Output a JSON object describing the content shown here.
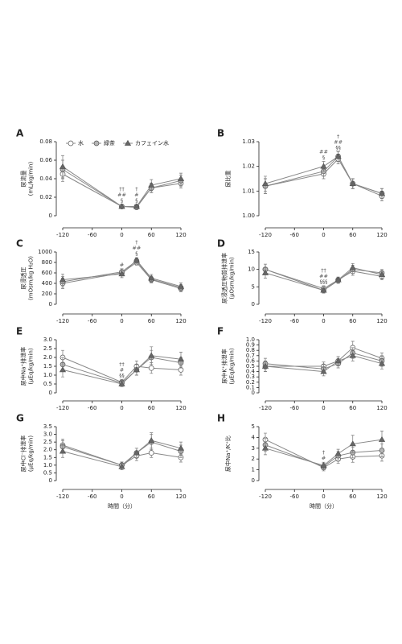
{
  "chart_data": [
    {
      "type": "line",
      "label": "A",
      "ylabel": [
        "尿流量",
        "(mL/kg/min)"
      ],
      "legend": true,
      "x": [
        -120,
        0,
        30,
        60,
        120
      ],
      "xlim": [
        -120,
        120
      ],
      "xticks": [
        -120,
        -60,
        0,
        60,
        120
      ],
      "ylim": [
        0,
        0.08
      ],
      "yticks": [
        0,
        0.02,
        0.04,
        0.06,
        0.08
      ],
      "series": [
        {
          "name": "水",
          "color": "#ffffff",
          "marker": "circle",
          "values": [
            0.045,
            0.01,
            0.01,
            0.03,
            0.035
          ],
          "errors": [
            0.008,
            0.002,
            0.002,
            0.005,
            0.005
          ]
        },
        {
          "name": "緑茶",
          "color": "#b5b5b5",
          "marker": "circle",
          "values": [
            0.05,
            0.01,
            0.009,
            0.03,
            0.038
          ],
          "errors": [
            0.01,
            0.002,
            0.002,
            0.005,
            0.006
          ]
        },
        {
          "name": "カフェイン水",
          "color": "#666666",
          "marker": "triangle",
          "values": [
            0.053,
            0.01,
            0.01,
            0.033,
            0.04
          ],
          "errors": [
            0.012,
            0.002,
            0.002,
            0.006,
            0.006
          ]
        }
      ],
      "annotations": [
        {
          "x": 0,
          "text": [
            "††",
            "##",
            "§"
          ]
        },
        {
          "x": 30,
          "text": [
            "†",
            "#",
            "§"
          ]
        }
      ]
    },
    {
      "type": "line",
      "label": "B",
      "ylabel": [
        "尿比重"
      ],
      "x": [
        -120,
        0,
        30,
        60,
        120
      ],
      "xlim": [
        -120,
        120
      ],
      "xticks": [
        -120,
        -60,
        0,
        60,
        120
      ],
      "ylim": [
        1.0,
        1.03
      ],
      "yticks": [
        {
          "value": 1.0,
          "label": "1.00"
        },
        {
          "value": 1.01,
          "label": "1.01"
        },
        {
          "value": 1.02,
          "label": "1.02"
        },
        {
          "value": 1.03,
          "label": "1.03"
        }
      ],
      "series": [
        {
          "name": "水",
          "color": "#ffffff",
          "marker": "circle",
          "values": [
            1.012,
            1.017,
            1.023,
            1.013,
            1.008
          ],
          "errors": [
            0.003,
            0.002,
            0.002,
            0.002,
            0.002
          ]
        },
        {
          "name": "緑茶",
          "color": "#b5b5b5",
          "marker": "circle",
          "values": [
            1.012,
            1.018,
            1.024,
            1.013,
            1.009
          ],
          "errors": [
            0.003,
            0.002,
            0.002,
            0.002,
            0.002
          ]
        },
        {
          "name": "カフェイン水",
          "color": "#666666",
          "marker": "triangle",
          "values": [
            1.013,
            1.02,
            1.024,
            1.013,
            1.009
          ],
          "errors": [
            0.003,
            0.002,
            0.002,
            0.002,
            0.002
          ]
        }
      ],
      "annotations": [
        {
          "x": 0,
          "text": [
            "##",
            "§"
          ]
        },
        {
          "x": 30,
          "text": [
            "†",
            "##",
            "§§"
          ]
        }
      ]
    },
    {
      "type": "line",
      "label": "C",
      "ylabel": [
        "尿浸透圧",
        "(mOsm/kg H₂O)"
      ],
      "x": [
        -120,
        0,
        30,
        60,
        120
      ],
      "xlim": [
        -120,
        120
      ],
      "xticks": [
        -120,
        -60,
        0,
        60,
        120
      ],
      "ylim": [
        0,
        1000
      ],
      "yticks": [
        0,
        200,
        400,
        600,
        800,
        1000
      ],
      "series": [
        {
          "name": "水",
          "color": "#ffffff",
          "marker": "circle",
          "values": [
            400,
            600,
            800,
            470,
            300
          ],
          "errors": [
            100,
            60,
            50,
            60,
            60
          ]
        },
        {
          "name": "緑茶",
          "color": "#b5b5b5",
          "marker": "circle",
          "values": [
            430,
            620,
            830,
            480,
            320
          ],
          "errors": [
            100,
            60,
            50,
            60,
            60
          ]
        },
        {
          "name": "カフェイン水",
          "color": "#666666",
          "marker": "triangle",
          "values": [
            470,
            580,
            840,
            500,
            340
          ],
          "errors": [
            110,
            70,
            50,
            70,
            70
          ]
        }
      ],
      "annotations": [
        {
          "x": 0,
          "text": [
            "#"
          ]
        },
        {
          "x": 30,
          "text": [
            "†",
            "##",
            "§"
          ]
        }
      ]
    },
    {
      "type": "line",
      "label": "D",
      "ylabel": [
        "尿浸透圧物質排泄率",
        "(μOsm/kg/min)"
      ],
      "x": [
        -120,
        0,
        30,
        60,
        120
      ],
      "xlim": [
        -120,
        120
      ],
      "xticks": [
        -120,
        -60,
        0,
        60,
        120
      ],
      "ylim": [
        0,
        15
      ],
      "yticks": [
        0,
        5,
        10,
        15
      ],
      "series": [
        {
          "name": "水",
          "color": "#ffffff",
          "marker": "circle",
          "values": [
            10,
            4.5,
            7,
            9.5,
            8
          ],
          "errors": [
            1.5,
            0.8,
            0.8,
            1.2,
            1
          ]
        },
        {
          "name": "緑茶",
          "color": "#b5b5b5",
          "marker": "circle",
          "values": [
            10,
            4,
            6.8,
            10,
            9
          ],
          "errors": [
            1.5,
            0.8,
            0.8,
            1.2,
            1
          ]
        },
        {
          "name": "カフェイン水",
          "color": "#666666",
          "marker": "triangle",
          "values": [
            9,
            4,
            7,
            10.5,
            8.5
          ],
          "errors": [
            1.5,
            0.8,
            0.8,
            1.2,
            1
          ]
        }
      ],
      "annotations": [
        {
          "x": 0,
          "text": [
            "††",
            "##",
            "§§§"
          ]
        }
      ]
    },
    {
      "type": "line",
      "label": "E",
      "ylabel": [
        "尿中Na⁺排泄率",
        "(μEq/kg/min)"
      ],
      "x": [
        -120,
        0,
        30,
        60,
        120
      ],
      "xlim": [
        -120,
        120
      ],
      "xticks": [
        -120,
        -60,
        0,
        60,
        120
      ],
      "ylim": [
        0,
        3.0
      ],
      "yticks": [
        0,
        0.5,
        {
          "value": 1,
          "label": "1.0"
        },
        1.5,
        {
          "value": 2,
          "label": "2.0"
        },
        2.5,
        {
          "value": 3,
          "label": "3.0"
        }
      ],
      "series": [
        {
          "name": "水",
          "color": "#ffffff",
          "marker": "circle",
          "values": [
            2.0,
            0.6,
            1.5,
            1.4,
            1.3
          ],
          "errors": [
            0.4,
            0.15,
            0.3,
            0.3,
            0.3
          ]
        },
        {
          "name": "緑茶",
          "color": "#b5b5b5",
          "marker": "circle",
          "values": [
            1.6,
            0.55,
            1.3,
            2.0,
            1.7
          ],
          "errors": [
            0.4,
            0.15,
            0.3,
            0.4,
            0.3
          ]
        },
        {
          "name": "カフェイン水",
          "color": "#666666",
          "marker": "triangle",
          "values": [
            1.3,
            0.5,
            1.3,
            2.1,
            1.9
          ],
          "errors": [
            0.4,
            0.15,
            0.3,
            0.5,
            0.4
          ]
        }
      ],
      "annotations": [
        {
          "x": 0,
          "text": [
            "††",
            "#",
            "§§"
          ]
        }
      ]
    },
    {
      "type": "line",
      "label": "F",
      "ylabel": [
        "尿中K⁺排泄率",
        "(μEq/kg/min)"
      ],
      "x": [
        -120,
        0,
        30,
        60,
        120
      ],
      "xlim": [
        -120,
        120
      ],
      "xticks": [
        -120,
        -60,
        0,
        60,
        120
      ],
      "ylim": [
        0,
        1.0
      ],
      "yticks": [
        0,
        0.1,
        0.2,
        0.3,
        0.4,
        0.5,
        0.6,
        0.7,
        0.8,
        0.9,
        {
          "value": 1,
          "label": "1.0"
        }
      ],
      "series": [
        {
          "name": "水",
          "color": "#ffffff",
          "marker": "circle",
          "values": [
            0.5,
            0.5,
            0.6,
            0.85,
            0.65
          ],
          "errors": [
            0.1,
            0.08,
            0.08,
            0.12,
            0.1
          ]
        },
        {
          "name": "緑茶",
          "color": "#b5b5b5",
          "marker": "circle",
          "values": [
            0.55,
            0.45,
            0.55,
            0.75,
            0.6
          ],
          "errors": [
            0.1,
            0.08,
            0.08,
            0.1,
            0.1
          ]
        },
        {
          "name": "カフェイン水",
          "color": "#666666",
          "marker": "triangle",
          "values": [
            0.5,
            0.4,
            0.6,
            0.7,
            0.55
          ],
          "errors": [
            0.1,
            0.08,
            0.08,
            0.1,
            0.1
          ]
        }
      ],
      "annotations": []
    },
    {
      "type": "line",
      "label": "G",
      "ylabel": [
        "尿中Cl⁻排泄率",
        "(μEq/kg/min)"
      ],
      "xlabel": "時間（分）",
      "x": [
        -120,
        0,
        30,
        60,
        120
      ],
      "xlim": [
        -120,
        120
      ],
      "xticks": [
        -120,
        -60,
        0,
        60,
        120
      ],
      "ylim": [
        0,
        3.5
      ],
      "yticks": [
        0,
        0.5,
        {
          "value": 1,
          "label": "1.0"
        },
        1.5,
        {
          "value": 2,
          "label": "2.0"
        },
        2.5,
        {
          "value": 3,
          "label": "3.0"
        },
        3.5
      ],
      "series": [
        {
          "name": "水",
          "color": "#ffffff",
          "marker": "circle",
          "values": [
            2.3,
            1.0,
            1.6,
            1.8,
            1.5
          ],
          "errors": [
            0.4,
            0.2,
            0.3,
            0.3,
            0.3
          ]
        },
        {
          "name": "緑茶",
          "color": "#b5b5b5",
          "marker": "circle",
          "values": [
            2.2,
            1.0,
            1.8,
            2.5,
            1.9
          ],
          "errors": [
            0.4,
            0.2,
            0.3,
            0.5,
            0.4
          ]
        },
        {
          "name": "カフェイン水",
          "color": "#666666",
          "marker": "triangle",
          "values": [
            1.9,
            0.9,
            1.8,
            2.6,
            2.1
          ],
          "errors": [
            0.4,
            0.2,
            0.3,
            0.5,
            0.4
          ]
        }
      ],
      "annotations": []
    },
    {
      "type": "line",
      "label": "H",
      "ylabel": [
        "尿中Na⁺/K⁺比"
      ],
      "xlabel": "時間（分）",
      "x": [
        -120,
        0,
        30,
        60,
        120
      ],
      "xlim": [
        -120,
        120
      ],
      "xticks": [
        -120,
        -60,
        0,
        60,
        120
      ],
      "ylim": [
        0,
        5
      ],
      "yticks": [
        0,
        1,
        2,
        3,
        4,
        5
      ],
      "series": [
        {
          "name": "水",
          "color": "#ffffff",
          "marker": "circle",
          "values": [
            3.8,
            1.2,
            2.0,
            2.2,
            2.3
          ],
          "errors": [
            0.6,
            0.3,
            0.4,
            0.5,
            0.5
          ]
        },
        {
          "name": "緑茶",
          "color": "#b5b5b5",
          "marker": "circle",
          "values": [
            3.3,
            1.3,
            2.3,
            2.6,
            2.8
          ],
          "errors": [
            0.6,
            0.3,
            0.4,
            0.5,
            0.6
          ]
        },
        {
          "name": "カフェイン水",
          "color": "#666666",
          "marker": "triangle",
          "values": [
            3.0,
            1.4,
            2.5,
            3.4,
            3.8
          ],
          "errors": [
            0.6,
            0.3,
            0.4,
            0.8,
            0.8
          ]
        }
      ],
      "annotations": [
        {
          "x": 0,
          "text": [
            "†",
            "#"
          ]
        }
      ]
    }
  ]
}
